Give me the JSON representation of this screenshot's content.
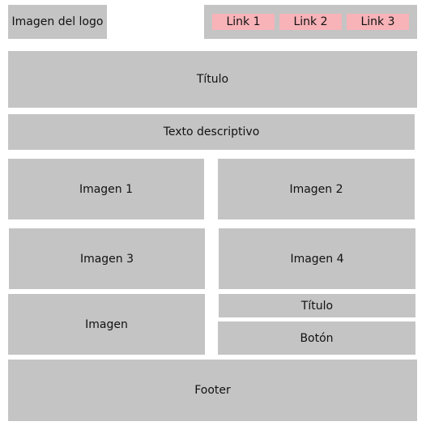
{
  "header": {
    "logo_label": "Imagen del logo",
    "nav": [
      {
        "label": "Link 1"
      },
      {
        "label": "Link 2"
      },
      {
        "label": "Link 3"
      }
    ]
  },
  "hero": {
    "title": "Título",
    "description": "Texto descriptivo"
  },
  "gallery": {
    "images": [
      {
        "label": "Imagen 1"
      },
      {
        "label": "Imagen 2"
      },
      {
        "label": "Imagen 3"
      },
      {
        "label": "Imagen 4"
      }
    ]
  },
  "feature": {
    "image_label": "Imagen",
    "title": "Título",
    "button_label": "Botón"
  },
  "footer": {
    "label": "Footer"
  },
  "colors": {
    "block": "#c4c4c4",
    "link": "#f7b3b8",
    "background": "#ffffff"
  }
}
